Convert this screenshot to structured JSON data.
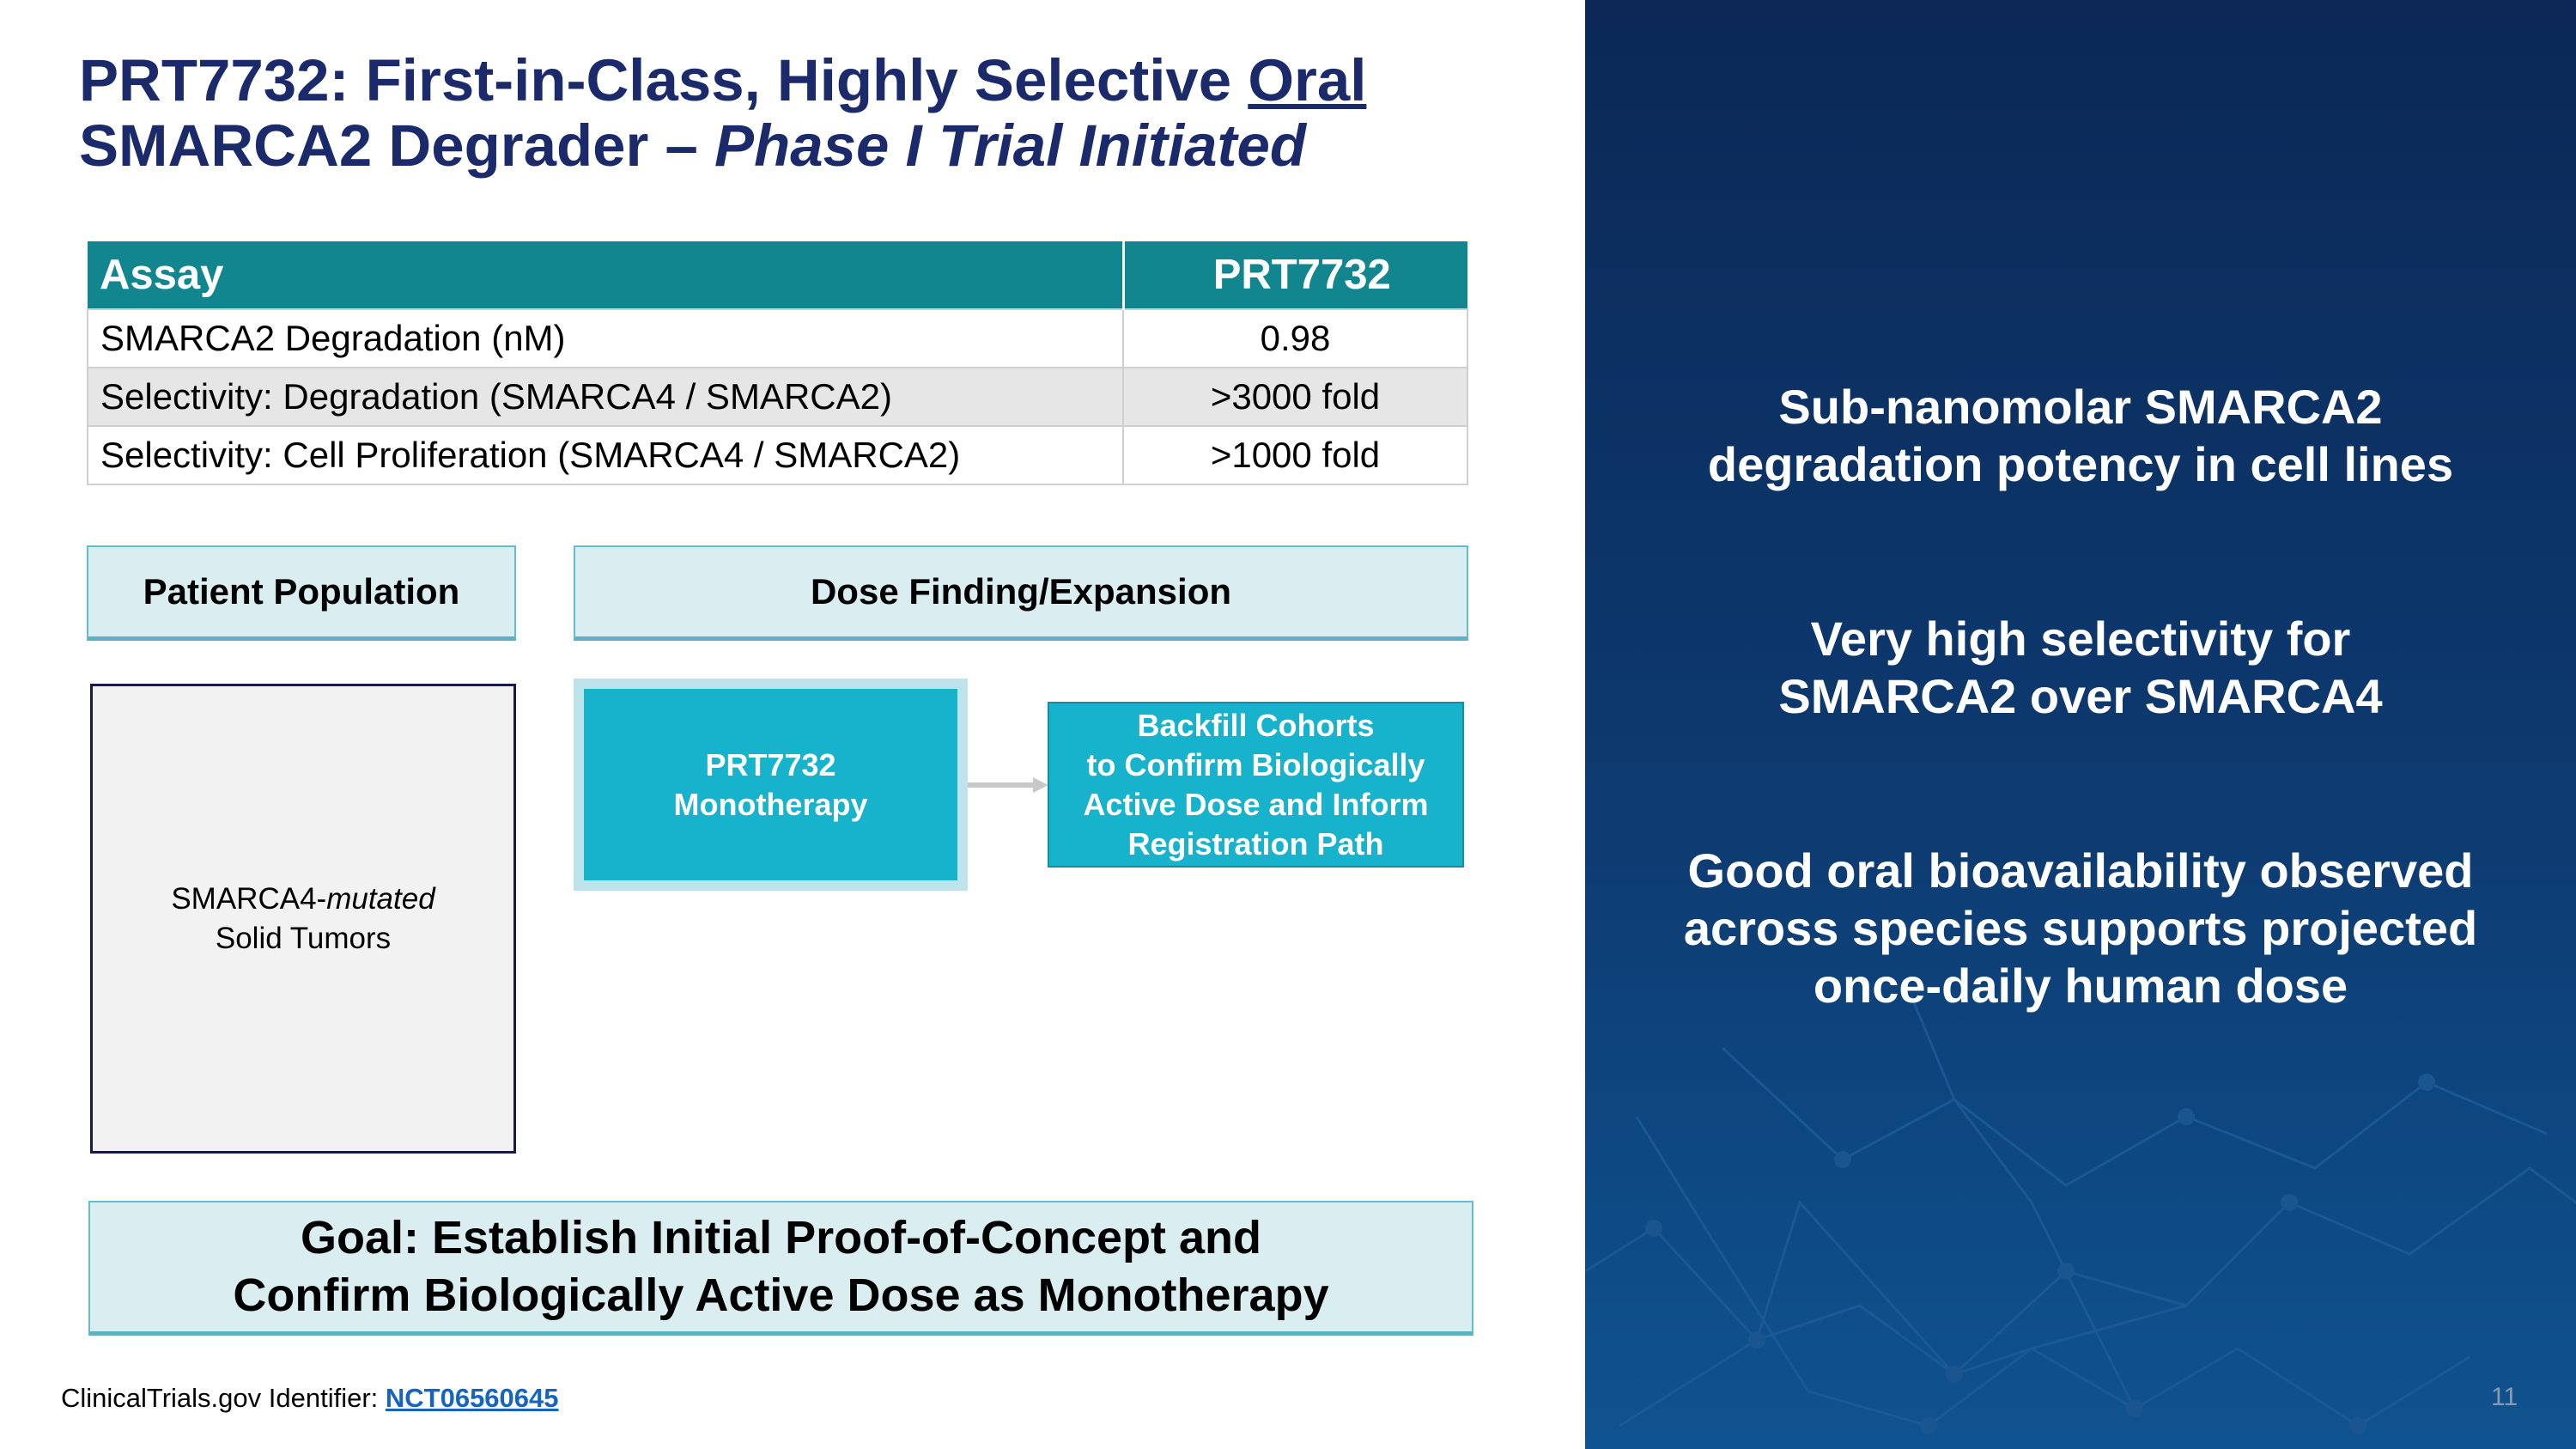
{
  "title": {
    "line1_prefix": "PRT7732:  First-in-Class, Highly Selective ",
    "line1_underlined": "Oral",
    "line2_prefix": "SMARCA2 Degrader – ",
    "line2_italic": "Phase I Trial Initiated"
  },
  "table": {
    "headers": [
      "Assay",
      "PRT7732"
    ],
    "rows": [
      [
        "SMARCA2 Degradation (nM)",
        "0.98"
      ],
      [
        "Selectivity: Degradation (SMARCA4 / SMARCA2)",
        ">3000 fold"
      ],
      [
        "Selectivity: Cell Proliferation (SMARCA4 / SMARCA2)",
        ">1000 fold"
      ]
    ]
  },
  "design": {
    "patient_header": "Patient Population",
    "dose_header": "Dose Finding/Expansion",
    "population_prefix": "SMARCA4-",
    "population_italic": "mutated",
    "population_line2": "Solid Tumors",
    "mono_line1": "PRT7732",
    "mono_line2": "Monotherapy",
    "backfill_lines": [
      "Backfill Cohorts",
      "to Confirm Biologically",
      "Active Dose and Inform",
      "Registration Path"
    ]
  },
  "goal": {
    "line1": "Goal: Establish Initial Proof-of-Concept and",
    "line2": "Confirm Biologically Active Dose as Monotherapy"
  },
  "footer": {
    "label": "ClinicalTrials.gov Identifier: ",
    "link": "NCT06560645"
  },
  "right_panel": {
    "points": [
      [
        "Sub-nanomolar SMARCA2",
        "degradation potency in cell lines"
      ],
      [
        "Very high selectivity for",
        "SMARCA2 over SMARCA4"
      ],
      [
        "Good oral bioavailability observed",
        "across species supports projected",
        "once-daily human dose"
      ]
    ]
  },
  "page_number": "11",
  "colors": {
    "title": "#1b2a6b",
    "table_header": "#12868f",
    "teal_box": "#17b3cc",
    "panel": "#0d3a70"
  }
}
